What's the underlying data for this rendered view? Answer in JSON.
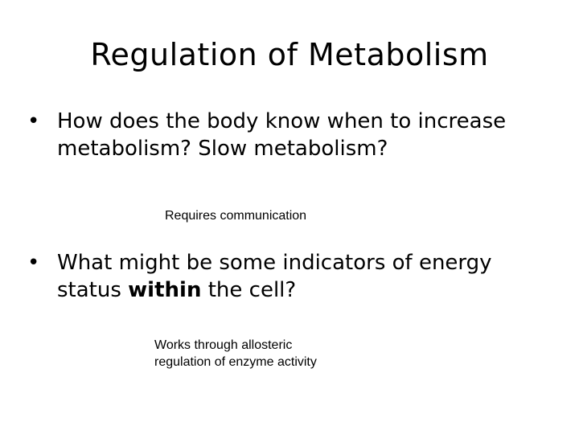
{
  "slide": {
    "title": "Regulation of Metabolism",
    "bullet_marker": "•",
    "bullets": [
      {
        "text": "How does the body know when to increase metabolism?  Slow metabolism?"
      },
      {
        "text_before": "What might be some indicators of energy status ",
        "emphasis": "within",
        "text_after": " the cell?"
      }
    ],
    "notes": [
      "Requires communication",
      "Works through allosteric regulation of enzyme activity"
    ]
  }
}
